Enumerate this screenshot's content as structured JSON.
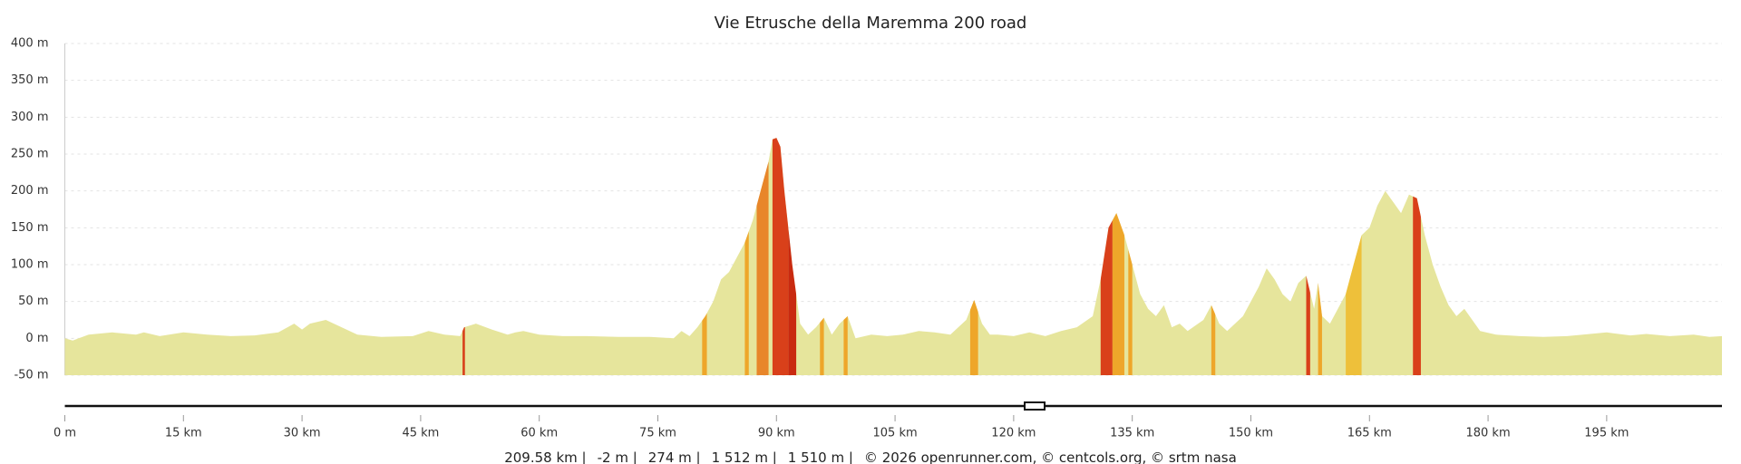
{
  "chart_data": {
    "type": "area",
    "title": "Vie Etrusche della Maremma 200 road",
    "x": [
      0,
      1,
      3,
      6,
      9,
      10,
      12,
      15,
      18,
      21,
      24,
      27,
      29,
      30,
      31,
      33,
      35,
      37,
      40,
      44,
      46,
      48,
      50,
      50.5,
      52,
      54,
      56,
      57,
      58,
      60,
      63,
      66,
      70,
      74,
      77,
      78,
      79,
      80,
      81,
      82,
      83,
      84,
      85,
      86,
      87,
      88,
      89,
      89.5,
      90,
      90.5,
      91,
      92,
      93,
      94,
      95,
      96,
      97,
      98,
      99,
      100,
      102,
      104,
      106,
      108,
      110,
      112,
      114,
      115,
      116,
      117,
      118,
      120,
      122,
      124,
      126,
      128,
      130,
      131,
      132,
      133,
      134,
      135,
      136,
      137,
      138,
      139,
      140,
      141,
      142,
      144,
      145,
      146,
      147,
      149,
      151,
      152,
      153,
      154,
      155,
      156,
      157,
      158,
      158.5,
      159,
      160,
      162,
      163,
      164,
      165,
      166,
      167,
      168,
      169,
      170,
      171,
      172,
      173,
      174,
      175,
      176,
      177,
      178,
      179,
      181,
      184,
      187,
      190,
      192,
      195,
      198,
      200,
      203,
      206,
      208,
      209.58
    ],
    "values": [
      0,
      -3,
      5,
      8,
      5,
      8,
      3,
      8,
      5,
      3,
      4,
      8,
      20,
      12,
      20,
      25,
      15,
      5,
      2,
      3,
      10,
      5,
      3,
      15,
      20,
      12,
      5,
      8,
      10,
      5,
      3,
      3,
      2,
      2,
      0,
      10,
      3,
      15,
      30,
      50,
      80,
      90,
      110,
      130,
      160,
      200,
      240,
      270,
      272,
      260,
      200,
      100,
      20,
      5,
      15,
      28,
      5,
      20,
      30,
      0,
      5,
      3,
      5,
      10,
      8,
      5,
      25,
      52,
      20,
      5,
      5,
      3,
      8,
      3,
      10,
      15,
      30,
      80,
      150,
      170,
      140,
      100,
      60,
      40,
      30,
      45,
      15,
      20,
      10,
      25,
      45,
      20,
      10,
      30,
      70,
      95,
      80,
      60,
      50,
      75,
      85,
      40,
      75,
      30,
      20,
      60,
      100,
      140,
      150,
      180,
      200,
      185,
      170,
      195,
      190,
      140,
      100,
      70,
      45,
      30,
      40,
      25,
      10,
      5,
      3,
      2,
      3,
      5,
      8,
      4,
      6,
      3,
      5,
      2,
      3
    ],
    "color": "#e6e59c",
    "gradient_sections": [
      {
        "from": 50.3,
        "to": 50.6,
        "color": "#d9401a"
      },
      {
        "from": 80.6,
        "to": 81.2,
        "color": "#eea62a"
      },
      {
        "from": 86,
        "to": 86.5,
        "color": "#eea62a"
      },
      {
        "from": 87.5,
        "to": 89,
        "color": "#e8862a"
      },
      {
        "from": 89.5,
        "to": 91.5,
        "color": "#d9401a"
      },
      {
        "from": 91.5,
        "to": 92.5,
        "color": "#c92a10"
      },
      {
        "from": 95.5,
        "to": 96,
        "color": "#eea62a"
      },
      {
        "from": 98.5,
        "to": 99,
        "color": "#eea62a"
      },
      {
        "from": 114.5,
        "to": 115.5,
        "color": "#eea62a"
      },
      {
        "from": 131,
        "to": 132.5,
        "color": "#d9401a"
      },
      {
        "from": 132.5,
        "to": 134,
        "color": "#eea62a"
      },
      {
        "from": 134.5,
        "to": 135,
        "color": "#eea62a"
      },
      {
        "from": 145,
        "to": 145.5,
        "color": "#eea62a"
      },
      {
        "from": 157,
        "to": 157.5,
        "color": "#d9401a"
      },
      {
        "from": 158.5,
        "to": 159,
        "color": "#eea62a"
      },
      {
        "from": 162,
        "to": 164,
        "color": "#eec03a"
      },
      {
        "from": 170.5,
        "to": 171.5,
        "color": "#d9401a"
      }
    ],
    "xlim": [
      0,
      209.58
    ],
    "ylim": [
      -50,
      400
    ],
    "xticks": [
      {
        "value": 0,
        "label": "0 m"
      },
      {
        "value": 15,
        "label": "15 km"
      },
      {
        "value": 30,
        "label": "30 km"
      },
      {
        "value": 45,
        "label": "45 km"
      },
      {
        "value": 60,
        "label": "60 km"
      },
      {
        "value": 75,
        "label": "75 km"
      },
      {
        "value": 90,
        "label": "90 km"
      },
      {
        "value": 105,
        "label": "105 km"
      },
      {
        "value": 120,
        "label": "120 km"
      },
      {
        "value": 135,
        "label": "135 km"
      },
      {
        "value": 150,
        "label": "150 km"
      },
      {
        "value": 165,
        "label": "165 km"
      },
      {
        "value": 180,
        "label": "180 km"
      },
      {
        "value": 195,
        "label": "195 km"
      }
    ],
    "yticks": [
      {
        "value": 400,
        "label": "400 m"
      },
      {
        "value": 350,
        "label": "350 m"
      },
      {
        "value": 300,
        "label": "300 m"
      },
      {
        "value": 250,
        "label": "250 m"
      },
      {
        "value": 200,
        "label": "200 m"
      },
      {
        "value": 150,
        "label": "150 m"
      },
      {
        "value": 100,
        "label": "100 m"
      },
      {
        "value": 50,
        "label": "50 m"
      },
      {
        "value": 0,
        "label": "0 m"
      },
      {
        "value": -50,
        "label": "-50 m"
      }
    ],
    "grid": true,
    "footer": [
      "209.58 km |",
      "-2 m |",
      "274 m |",
      "1 512 m |",
      "1 510 m |",
      "© 2026 openrunner.com, © centcols.org, © srtm nasa"
    ]
  }
}
